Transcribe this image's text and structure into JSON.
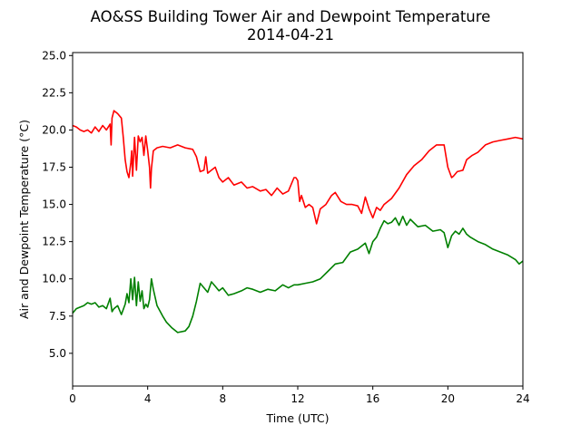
{
  "chart_data": {
    "type": "line",
    "title": "AO&SS Building Tower Air and Dewpoint Temperature",
    "subtitle": "2014-04-21",
    "xlabel": "Time (UTC)",
    "ylabel": "Air and Dewpoint Temperature (°C)",
    "xlim": [
      0,
      24
    ],
    "ylim": [
      2.8,
      25.2
    ],
    "xticks": [
      "0",
      "4",
      "8",
      "12",
      "16",
      "20",
      "24"
    ],
    "yticks": [
      "5.0",
      "7.5",
      "10.0",
      "12.5",
      "15.0",
      "17.5",
      "20.0",
      "22.5",
      "25.0"
    ],
    "grid": false,
    "legend": "none",
    "series": [
      {
        "color": "#ff0000",
        "x": [
          0.0,
          0.2,
          0.4,
          0.6,
          0.8,
          1.0,
          1.2,
          1.4,
          1.6,
          1.8,
          2.0,
          2.05,
          2.1,
          2.2,
          2.4,
          2.6,
          2.7,
          2.8,
          2.9,
          3.0,
          3.1,
          3.15,
          3.2,
          3.3,
          3.4,
          3.5,
          3.6,
          3.7,
          3.8,
          3.9,
          4.0,
          4.1,
          4.15,
          4.2,
          4.3,
          4.5,
          4.8,
          5.2,
          5.6,
          6.0,
          6.4,
          6.6,
          6.8,
          7.0,
          7.1,
          7.2,
          7.4,
          7.6,
          7.8,
          8.0,
          8.3,
          8.6,
          9.0,
          9.3,
          9.6,
          10.0,
          10.3,
          10.6,
          10.9,
          11.2,
          11.5,
          11.8,
          11.9,
          12.0,
          12.1,
          12.2,
          12.4,
          12.6,
          12.8,
          13.0,
          13.2,
          13.5,
          13.8,
          14.0,
          14.3,
          14.6,
          14.9,
          15.2,
          15.4,
          15.6,
          15.8,
          16.0,
          16.2,
          16.4,
          16.6,
          17.0,
          17.4,
          17.8,
          18.2,
          18.6,
          19.0,
          19.4,
          19.8,
          20.0,
          20.2,
          20.3,
          20.5,
          20.8,
          21.0,
          21.3,
          21.6,
          22.0,
          22.4,
          22.8,
          23.2,
          23.6,
          24.0
        ],
        "values": [
          20.3,
          20.2,
          20.0,
          19.9,
          20.0,
          19.8,
          20.2,
          19.9,
          20.3,
          20.0,
          20.4,
          19.0,
          20.8,
          21.3,
          21.1,
          20.8,
          19.5,
          18.0,
          17.2,
          16.8,
          17.8,
          18.6,
          16.9,
          19.5,
          17.3,
          19.6,
          19.2,
          19.5,
          18.3,
          19.6,
          18.6,
          17.5,
          16.1,
          17.4,
          18.6,
          18.8,
          18.9,
          18.8,
          19.0,
          18.8,
          18.7,
          18.2,
          17.2,
          17.3,
          18.2,
          17.1,
          17.3,
          17.5,
          16.8,
          16.5,
          16.8,
          16.3,
          16.5,
          16.1,
          16.2,
          15.9,
          16.0,
          15.6,
          16.1,
          15.7,
          15.9,
          16.8,
          16.8,
          16.6,
          15.2,
          15.6,
          14.8,
          15.0,
          14.8,
          13.7,
          14.7,
          15.0,
          15.6,
          15.8,
          15.2,
          15.0,
          15.0,
          14.9,
          14.4,
          15.5,
          14.7,
          14.1,
          14.8,
          14.6,
          15.0,
          15.4,
          16.1,
          17.0,
          17.6,
          18.0,
          18.6,
          19.0,
          19.0,
          17.5,
          16.8,
          16.9,
          17.2,
          17.3,
          18.0,
          18.3,
          18.5,
          19.0,
          19.2,
          19.3,
          19.4,
          19.5,
          19.4
        ]
      },
      {
        "color": "#008000",
        "x": [
          0.0,
          0.2,
          0.4,
          0.6,
          0.8,
          1.0,
          1.2,
          1.4,
          1.6,
          1.8,
          2.0,
          2.1,
          2.2,
          2.4,
          2.6,
          2.8,
          2.9,
          3.0,
          3.1,
          3.2,
          3.3,
          3.4,
          3.5,
          3.6,
          3.7,
          3.8,
          3.9,
          4.0,
          4.1,
          4.2,
          4.3,
          4.5,
          4.8,
          5.0,
          5.3,
          5.6,
          6.0,
          6.2,
          6.4,
          6.6,
          6.8,
          7.0,
          7.2,
          7.4,
          7.6,
          7.8,
          8.0,
          8.3,
          8.6,
          9.0,
          9.3,
          9.6,
          10.0,
          10.4,
          10.8,
          11.2,
          11.5,
          11.8,
          12.0,
          12.4,
          12.8,
          13.2,
          13.6,
          14.0,
          14.4,
          14.8,
          15.2,
          15.6,
          15.8,
          16.0,
          16.2,
          16.4,
          16.6,
          16.8,
          17.0,
          17.2,
          17.4,
          17.6,
          17.8,
          18.0,
          18.4,
          18.8,
          19.2,
          19.6,
          19.8,
          20.0,
          20.2,
          20.4,
          20.6,
          20.8,
          21.0,
          21.2,
          21.6,
          22.0,
          22.4,
          22.8,
          23.2,
          23.6,
          23.8,
          24.0
        ],
        "values": [
          7.7,
          8.0,
          8.1,
          8.2,
          8.4,
          8.3,
          8.4,
          8.1,
          8.2,
          8.0,
          8.7,
          7.8,
          8.0,
          8.2,
          7.6,
          8.3,
          9.0,
          8.4,
          10.0,
          8.6,
          10.1,
          8.2,
          9.8,
          8.5,
          9.2,
          8.0,
          8.3,
          8.1,
          8.6,
          10.0,
          9.3,
          8.2,
          7.5,
          7.1,
          6.7,
          6.4,
          6.5,
          6.8,
          7.5,
          8.5,
          9.7,
          9.4,
          9.1,
          9.8,
          9.5,
          9.2,
          9.4,
          8.9,
          9.0,
          9.2,
          9.4,
          9.3,
          9.1,
          9.3,
          9.2,
          9.6,
          9.4,
          9.6,
          9.6,
          9.7,
          9.8,
          10.0,
          10.5,
          11.0,
          11.1,
          11.8,
          12.0,
          12.4,
          11.7,
          12.5,
          12.8,
          13.4,
          13.9,
          13.7,
          13.8,
          14.1,
          13.6,
          14.2,
          13.6,
          14.0,
          13.5,
          13.6,
          13.2,
          13.3,
          13.1,
          12.1,
          12.9,
          13.2,
          13.0,
          13.4,
          13.0,
          12.8,
          12.5,
          12.3,
          12.0,
          11.8,
          11.6,
          11.3,
          11.0,
          11.2
        ]
      }
    ]
  }
}
